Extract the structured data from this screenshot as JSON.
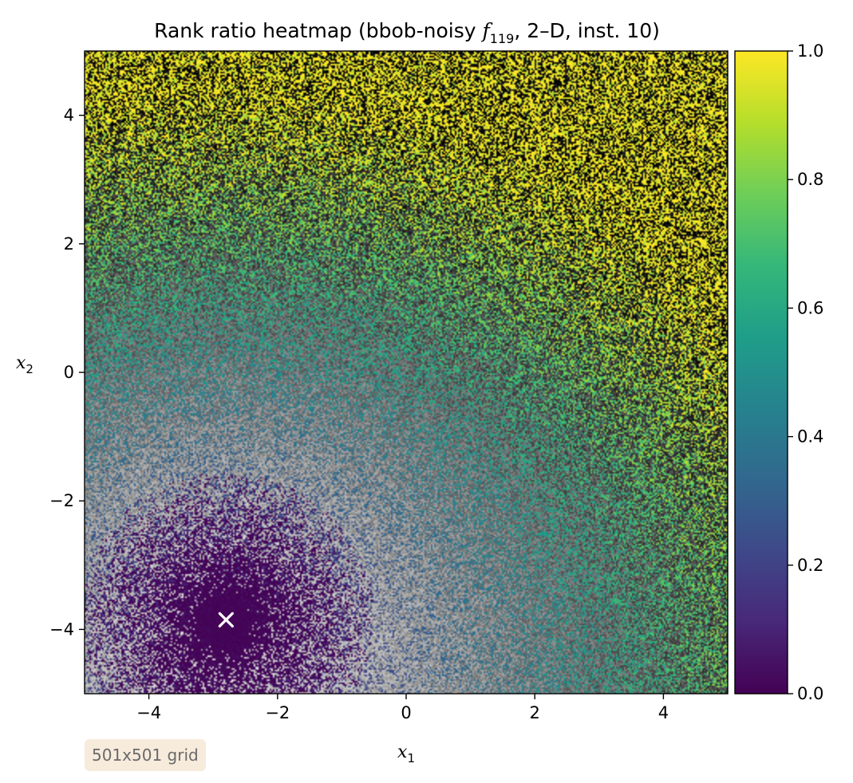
{
  "chart_data": {
    "type": "heatmap",
    "title": {
      "prefix": "Rank ratio heatmap (bbob-noisy ",
      "func_letter": "f",
      "func_subscript": "119",
      "suffix": ", 2–D, inst. 10)"
    },
    "xlabel": {
      "var": "x",
      "sub": "1"
    },
    "ylabel": {
      "var": "x",
      "sub": "2"
    },
    "xlim": [
      -5,
      5
    ],
    "ylim": [
      -5,
      5
    ],
    "xticks": [
      -4,
      -2,
      0,
      2,
      4
    ],
    "yticks": [
      -4,
      -2,
      0,
      2,
      4
    ],
    "tick_labels": {
      "x": [
        "−4",
        "−2",
        "0",
        "2",
        "4"
      ],
      "y": [
        "−4",
        "−2",
        "0",
        "2",
        "4"
      ]
    },
    "colorbar": {
      "colormap": "viridis",
      "range": [
        0,
        1
      ],
      "ticks": [
        0.0,
        0.2,
        0.4,
        0.6,
        0.8,
        1.0
      ],
      "tick_labels": [
        "0.0",
        "0.2",
        "0.4",
        "0.6",
        "0.8",
        "1.0"
      ]
    },
    "optimum_marker": {
      "x": -2.8,
      "y": -3.85,
      "symbol": "x",
      "color": "#ffffff"
    },
    "field_description": "noisy rank ratio, low near optimum, increasing toward top-left",
    "grid_note": "501x501 grid"
  },
  "colors": {
    "viridis": [
      "#440154",
      "#482878",
      "#3e4989",
      "#31688e",
      "#26828e",
      "#1f9e89",
      "#35b779",
      "#6ece58",
      "#b5de2b",
      "#fde725"
    ],
    "marker": "#ffffff",
    "badge_bg": "#f7ebdc",
    "badge_text": "#6a6a6a"
  }
}
